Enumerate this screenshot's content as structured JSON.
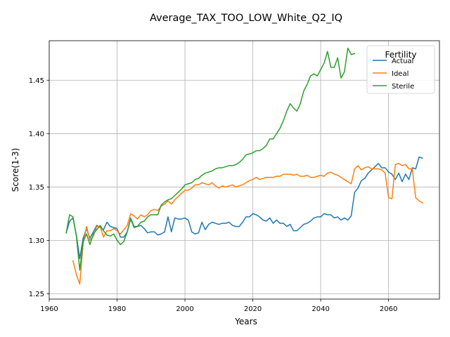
{
  "chart_data": {
    "type": "line",
    "title": "Average_TAX_TOO_LOW_White_Q2_IQ",
    "xlabel": "Years",
    "ylabel": "Score(1-3)",
    "xlim": [
      1960,
      2075
    ],
    "ylim": [
      1.245,
      1.487
    ],
    "xticks": [
      1960,
      1980,
      2000,
      2020,
      2040,
      2060
    ],
    "xtick_labels": [
      "1960",
      "1980",
      "2000",
      "2020",
      "2040",
      "2060"
    ],
    "yticks": [
      1.25,
      1.3,
      1.35,
      1.4,
      1.45
    ],
    "ytick_labels": [
      "1.25",
      "1.30",
      "1.35",
      "1.40",
      "1.45"
    ],
    "grid": true,
    "legend": {
      "title": "Fertility",
      "placement": "top-right"
    },
    "series": [
      {
        "name": "Actual",
        "color": "#1f77b4",
        "x": [
          1965,
          1966,
          1967,
          1968,
          1969,
          1970,
          1971,
          1972,
          1973,
          1974,
          1975,
          1976,
          1977,
          1978,
          1979,
          1980,
          1981,
          1982,
          1983,
          1984,
          1985,
          1986,
          1987,
          1988,
          1989,
          1990,
          1991,
          1992,
          1993,
          1994,
          1995,
          1996,
          1997,
          1998,
          1999,
          2000,
          2001,
          2002,
          2003,
          2004,
          2005,
          2006,
          2007,
          2008,
          2009,
          2010,
          2011,
          2012,
          2013,
          2014,
          2015,
          2016,
          2017,
          2018,
          2019,
          2020,
          2021,
          2022,
          2023,
          2024,
          2025,
          2026,
          2027,
          2028,
          2029,
          2030,
          2031,
          2032,
          2033,
          2034,
          2035,
          2036,
          2037,
          2038,
          2039,
          2040,
          2041,
          2042,
          2043,
          2044,
          2045,
          2046,
          2047,
          2048,
          2049,
          2050,
          2051,
          2052,
          2053,
          2054,
          2055,
          2056,
          2057,
          2058,
          2059,
          2060,
          2061,
          2062,
          2063,
          2064,
          2065,
          2066,
          2067,
          2068,
          2069,
          2070
        ],
        "y": [
          1.307,
          1.318,
          1.321,
          1.305,
          1.283,
          1.302,
          1.311,
          1.302,
          1.308,
          1.314,
          1.312,
          1.31,
          1.317,
          1.313,
          1.312,
          1.311,
          1.303,
          1.303,
          1.308,
          1.321,
          1.313,
          1.313,
          1.314,
          1.311,
          1.307,
          1.308,
          1.308,
          1.305,
          1.306,
          1.308,
          1.322,
          1.308,
          1.321,
          1.32,
          1.32,
          1.321,
          1.319,
          1.308,
          1.306,
          1.307,
          1.317,
          1.31,
          1.315,
          1.317,
          1.316,
          1.315,
          1.316,
          1.316,
          1.317,
          1.314,
          1.313,
          1.313,
          1.317,
          1.322,
          1.322,
          1.325,
          1.324,
          1.322,
          1.319,
          1.318,
          1.321,
          1.316,
          1.319,
          1.316,
          1.316,
          1.313,
          1.315,
          1.309,
          1.309,
          1.312,
          1.315,
          1.316,
          1.318,
          1.321,
          1.322,
          1.322,
          1.325,
          1.324,
          1.324,
          1.321,
          1.322,
          1.319,
          1.321,
          1.319,
          1.323,
          1.345,
          1.349,
          1.356,
          1.358,
          1.363,
          1.366,
          1.369,
          1.372,
          1.368,
          1.368,
          1.364,
          1.362,
          1.357,
          1.363,
          1.355,
          1.362,
          1.357,
          1.368,
          1.367,
          1.378,
          1.377
        ]
      },
      {
        "name": "Ideal",
        "color": "#ff7f0e",
        "x": [
          1967,
          1968,
          1969,
          1970,
          1971,
          1972,
          1973,
          1974,
          1975,
          1976,
          1977,
          1978,
          1979,
          1980,
          1981,
          1982,
          1983,
          1984,
          1985,
          1986,
          1987,
          1988,
          1989,
          1990,
          1991,
          1992,
          1993,
          1994,
          1995,
          1996,
          1997,
          1998,
          1999,
          2000,
          2001,
          2002,
          2003,
          2004,
          2005,
          2006,
          2007,
          2008,
          2009,
          2010,
          2011,
          2012,
          2013,
          2014,
          2015,
          2016,
          2017,
          2018,
          2019,
          2020,
          2021,
          2022,
          2023,
          2024,
          2025,
          2026,
          2027,
          2028,
          2029,
          2030,
          2031,
          2032,
          2033,
          2034,
          2035,
          2036,
          2037,
          2038,
          2039,
          2040,
          2041,
          2042,
          2043,
          2044,
          2045,
          2046,
          2047,
          2048,
          2049,
          2050,
          2051,
          2052,
          2053,
          2054,
          2055,
          2056,
          2057,
          2058,
          2059,
          2060,
          2061,
          2062,
          2063,
          2064,
          2065,
          2066,
          2067,
          2068,
          2069,
          2070
        ],
        "y": [
          1.281,
          1.268,
          1.259,
          1.297,
          1.313,
          1.3,
          1.304,
          1.313,
          1.313,
          1.303,
          1.309,
          1.309,
          1.311,
          1.309,
          1.306,
          1.31,
          1.314,
          1.325,
          1.323,
          1.32,
          1.324,
          1.322,
          1.324,
          1.328,
          1.329,
          1.328,
          1.332,
          1.334,
          1.337,
          1.334,
          1.338,
          1.341,
          1.344,
          1.347,
          1.347,
          1.349,
          1.352,
          1.352,
          1.354,
          1.353,
          1.352,
          1.354,
          1.351,
          1.349,
          1.351,
          1.35,
          1.351,
          1.352,
          1.35,
          1.351,
          1.352,
          1.354,
          1.356,
          1.357,
          1.359,
          1.357,
          1.358,
          1.359,
          1.359,
          1.359,
          1.36,
          1.36,
          1.362,
          1.362,
          1.362,
          1.361,
          1.362,
          1.36,
          1.36,
          1.361,
          1.359,
          1.359,
          1.36,
          1.361,
          1.36,
          1.363,
          1.364,
          1.362,
          1.361,
          1.359,
          1.357,
          1.355,
          1.353,
          1.367,
          1.37,
          1.366,
          1.368,
          1.369,
          1.367,
          1.367,
          1.367,
          1.366,
          1.363,
          1.34,
          1.339,
          1.371,
          1.372,
          1.37,
          1.371,
          1.367,
          1.367,
          1.34,
          1.337,
          1.335
        ]
      },
      {
        "name": "Sterile",
        "color": "#2ca02c",
        "x": [
          1965,
          1966,
          1967,
          1968,
          1969,
          1970,
          1971,
          1972,
          1973,
          1974,
          1975,
          1976,
          1977,
          1978,
          1979,
          1980,
          1981,
          1982,
          1983,
          1984,
          1985,
          1986,
          1987,
          1988,
          1989,
          1990,
          1991,
          1992,
          1993,
          1994,
          1995,
          1996,
          1997,
          1998,
          1999,
          2000,
          2001,
          2002,
          2003,
          2004,
          2005,
          2006,
          2007,
          2008,
          2009,
          2010,
          2011,
          2012,
          2013,
          2014,
          2015,
          2016,
          2017,
          2018,
          2019,
          2020,
          2021,
          2022,
          2023,
          2024,
          2025,
          2026,
          2027,
          2028,
          2029,
          2030,
          2031,
          2032,
          2033,
          2034,
          2035,
          2036,
          2037,
          2038,
          2039,
          2040,
          2041,
          2042,
          2043,
          2044,
          2045,
          2046,
          2047,
          2048,
          2049,
          2050
        ],
        "y": [
          1.307,
          1.324,
          1.322,
          1.304,
          1.272,
          1.299,
          1.306,
          1.296,
          1.306,
          1.31,
          1.314,
          1.309,
          1.305,
          1.304,
          1.306,
          1.3,
          1.296,
          1.299,
          1.308,
          1.32,
          1.312,
          1.313,
          1.317,
          1.318,
          1.322,
          1.324,
          1.324,
          1.324,
          1.333,
          1.336,
          1.338,
          1.339,
          1.342,
          1.345,
          1.348,
          1.352,
          1.353,
          1.354,
          1.357,
          1.358,
          1.361,
          1.363,
          1.364,
          1.365,
          1.367,
          1.368,
          1.368,
          1.369,
          1.37,
          1.37,
          1.371,
          1.373,
          1.376,
          1.38,
          1.381,
          1.382,
          1.384,
          1.384,
          1.386,
          1.389,
          1.395,
          1.395,
          1.4,
          1.405,
          1.412,
          1.421,
          1.428,
          1.424,
          1.421,
          1.428,
          1.44,
          1.446,
          1.454,
          1.456,
          1.454,
          1.46,
          1.466,
          1.477,
          1.462,
          1.462,
          1.471,
          1.452,
          1.458,
          1.48,
          1.474,
          1.475
        ]
      }
    ]
  }
}
